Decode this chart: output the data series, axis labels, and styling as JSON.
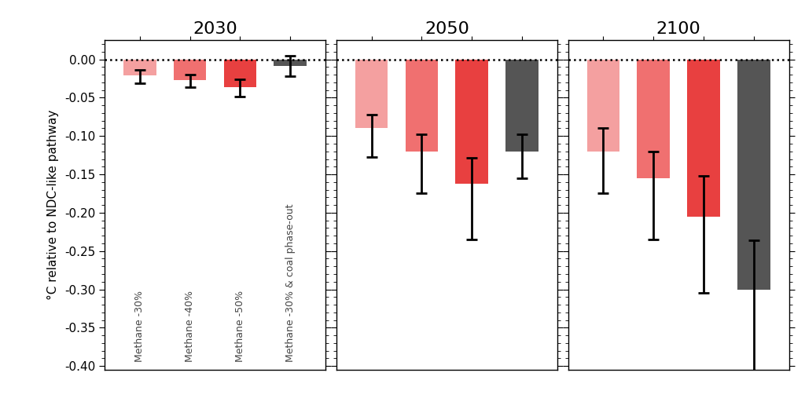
{
  "panels": [
    {
      "title": "2030",
      "bars": [
        {
          "value": -0.021,
          "color": "#F4A0A0",
          "err_low": -0.031,
          "err_high": -0.014
        },
        {
          "value": -0.027,
          "color": "#F07070",
          "err_low": -0.036,
          "err_high": -0.02
        },
        {
          "value": -0.036,
          "color": "#E84040",
          "err_low": -0.049,
          "err_high": -0.026
        },
        {
          "value": -0.009,
          "color": "#555555",
          "err_low": -0.022,
          "err_high": 0.005
        }
      ],
      "tick_labels": [
        "Methane -30%",
        "Methane -40%",
        "Methane -50%",
        "Methane -30% & coal phase-out"
      ],
      "show_ylabel": true
    },
    {
      "title": "2050",
      "bars": [
        {
          "value": -0.09,
          "color": "#F4A0A0",
          "err_low": -0.127,
          "err_high": -0.072
        },
        {
          "value": -0.12,
          "color": "#F07070",
          "err_low": -0.175,
          "err_high": -0.098
        },
        {
          "value": -0.162,
          "color": "#E84040",
          "err_low": -0.235,
          "err_high": -0.128
        },
        {
          "value": -0.12,
          "color": "#555555",
          "err_low": -0.155,
          "err_high": -0.098
        }
      ],
      "tick_labels": [
        "",
        "",
        "",
        ""
      ],
      "show_ylabel": false
    },
    {
      "title": "2100",
      "bars": [
        {
          "value": -0.12,
          "color": "#F4A0A0",
          "err_low": -0.175,
          "err_high": -0.09
        },
        {
          "value": -0.155,
          "color": "#F07070",
          "err_low": -0.235,
          "err_high": -0.12
        },
        {
          "value": -0.205,
          "color": "#E84040",
          "err_low": -0.305,
          "err_high": -0.152
        },
        {
          "value": -0.3,
          "color": "#555555",
          "err_low": -0.415,
          "err_high": -0.236
        }
      ],
      "tick_labels": [
        "",
        "",
        "",
        ""
      ],
      "show_ylabel": false
    }
  ],
  "ylim": [
    -0.405,
    0.025
  ],
  "yticks": [
    0.0,
    -0.05,
    -0.1,
    -0.15,
    -0.2,
    -0.25,
    -0.3,
    -0.35,
    -0.4
  ],
  "ylabel": "°C relative to NDC-like pathway",
  "background_color": "#ffffff",
  "bar_width": 0.65,
  "title_fontsize": 16,
  "label_fontsize": 9,
  "tick_fontsize": 11
}
